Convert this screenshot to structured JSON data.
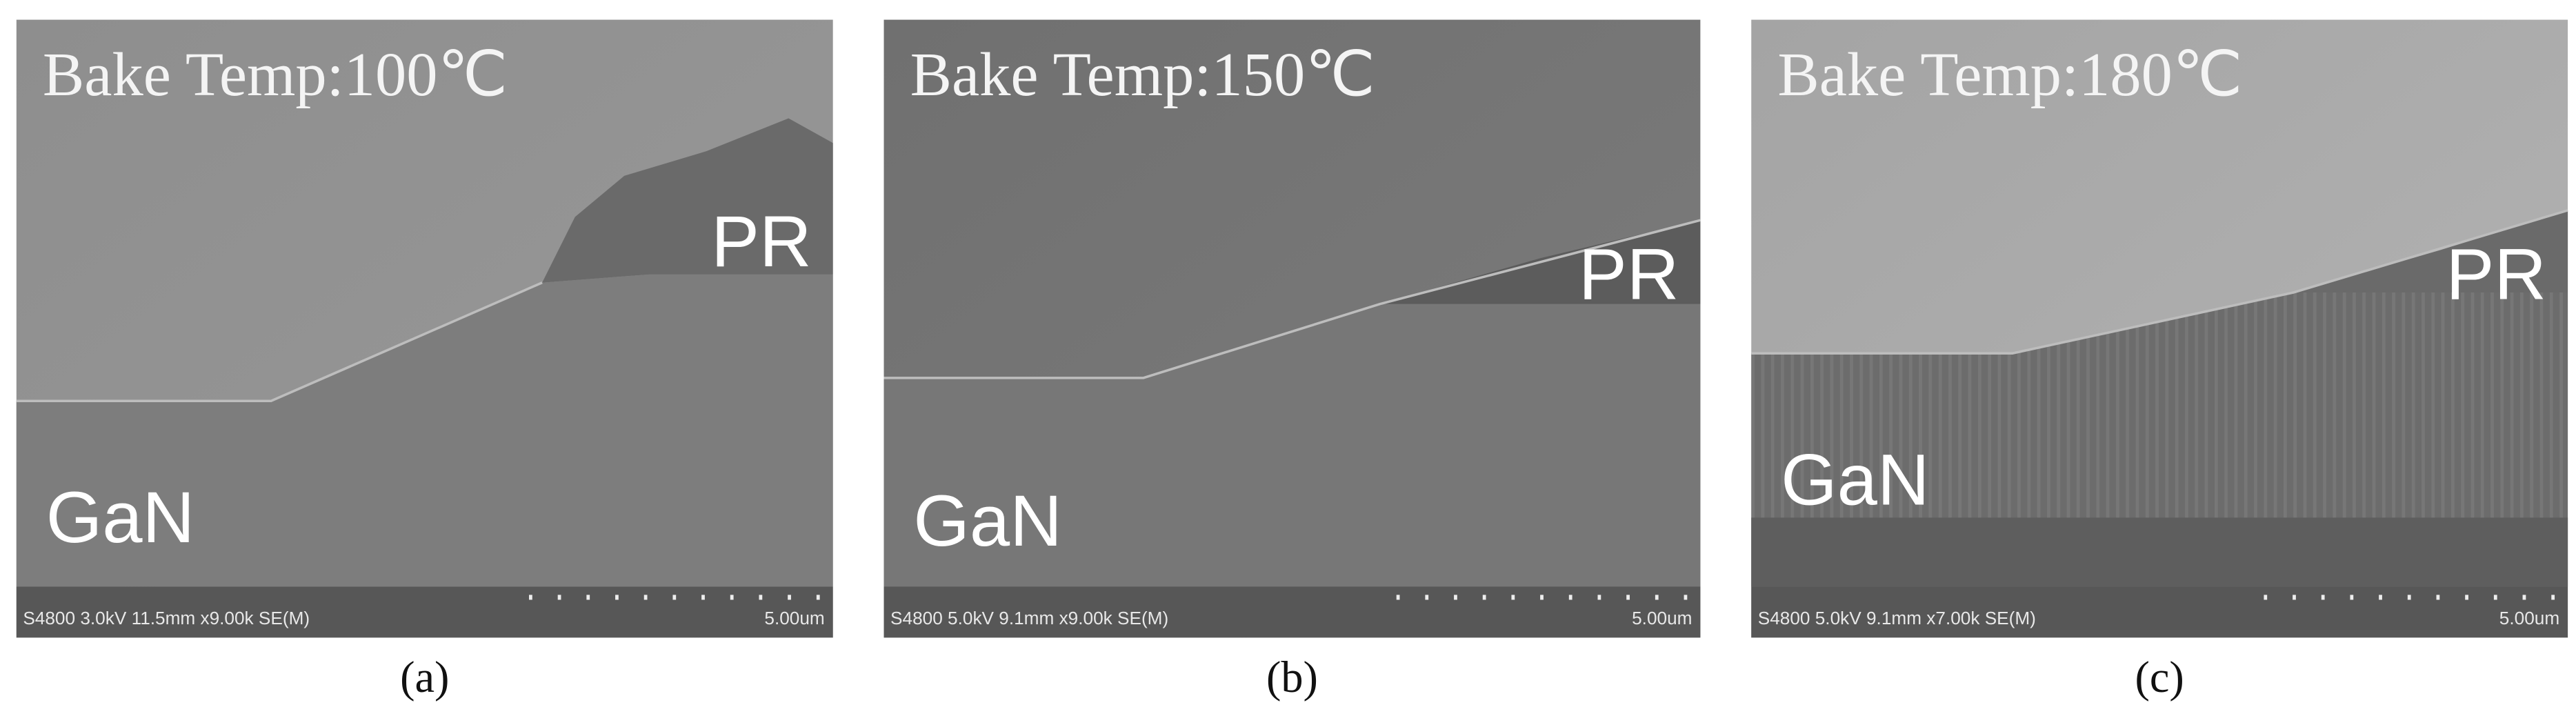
{
  "panels": [
    {
      "title": "Bake Temp:100℃",
      "pr_label": "PR",
      "gan_label": "GaN",
      "info": "S4800 3.0kV 11.5mm x9.00k SE(M)",
      "scale": "5.00um",
      "caption": "(a)"
    },
    {
      "title": "Bake Temp:150℃",
      "pr_label": "PR",
      "gan_label": "GaN",
      "info": "S4800 5.0kV 9.1mm x9.00k SE(M)",
      "scale": "5.00um",
      "caption": "(b)"
    },
    {
      "title": "Bake Temp:180℃",
      "pr_label": "PR",
      "gan_label": "GaN",
      "info": "S4800 5.0kV 9.1mm x7.00k SE(M)",
      "scale": "5.00um",
      "caption": "(c)"
    }
  ]
}
